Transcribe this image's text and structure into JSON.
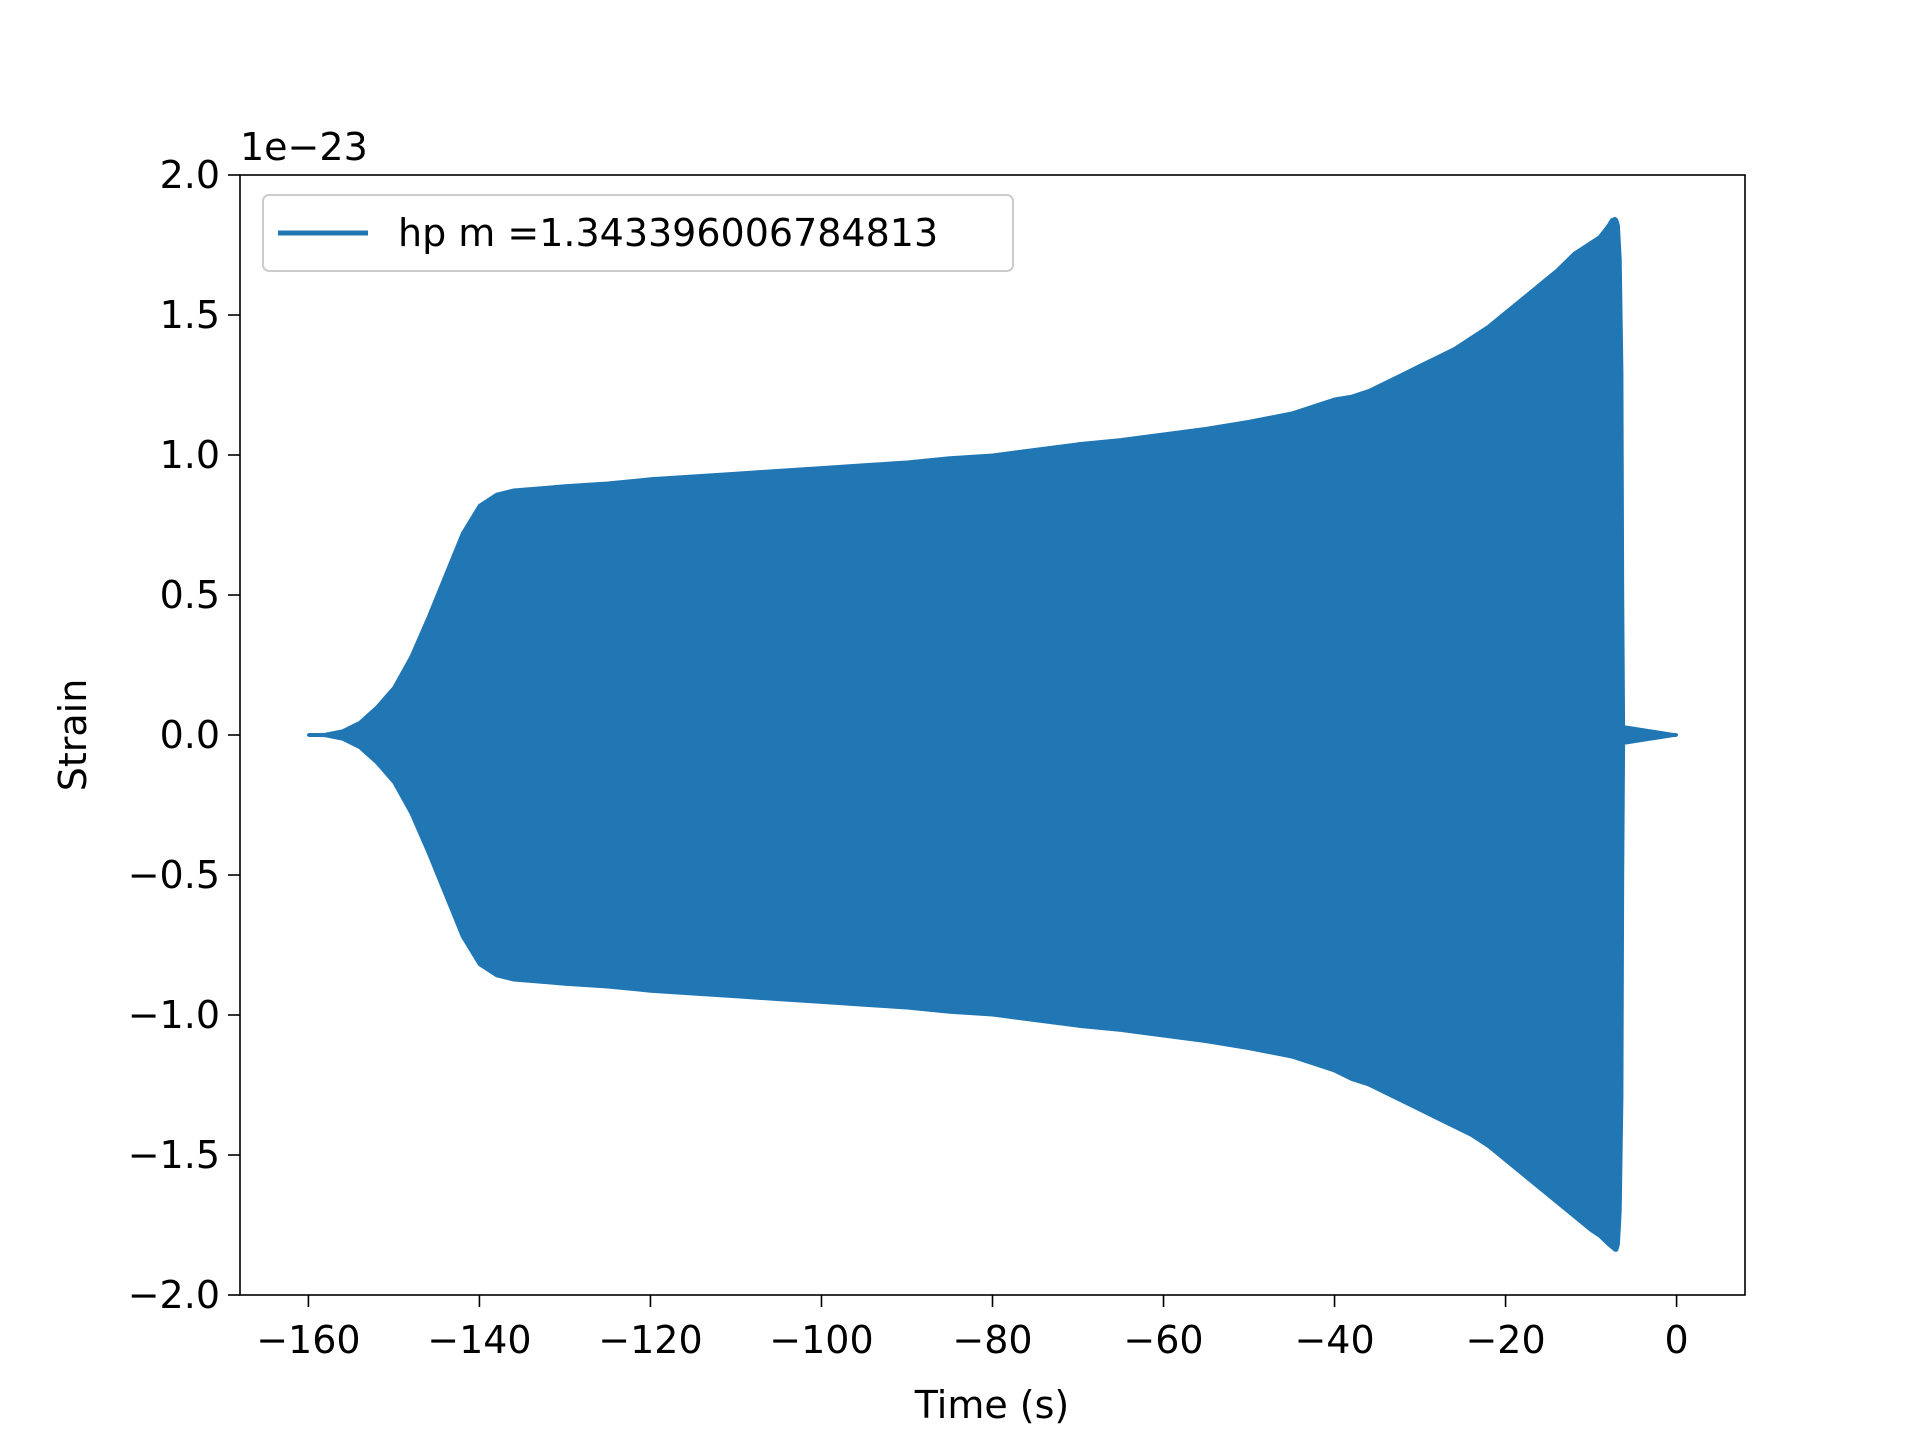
{
  "chart_data": {
    "type": "area",
    "title": "",
    "xlabel": "Time (s)",
    "ylabel": "Strain",
    "y_offset_label": "1e−23",
    "xlim": [
      -168,
      8
    ],
    "ylim": [
      -2.0,
      2.0
    ],
    "x_ticks": [
      -160,
      -140,
      -120,
      -100,
      -80,
      -60,
      -40,
      -20,
      0
    ],
    "x_tick_labels": [
      "−160",
      "−140",
      "−120",
      "−100",
      "−80",
      "−60",
      "−40",
      "−20",
      "0"
    ],
    "y_ticks": [
      2.0,
      1.5,
      1.0,
      0.5,
      0.0,
      -0.5,
      -1.0,
      -1.5,
      -2.0
    ],
    "y_tick_labels": [
      "2.0",
      "1.5",
      "1.0",
      "0.5",
      "0.0",
      "−0.5",
      "−1.0",
      "−1.5",
      "−2.0"
    ],
    "grid": false,
    "legend": {
      "position": "top-left",
      "entries": [
        "hp m =1.343396006784813"
      ]
    },
    "series": [
      {
        "name": "hp m =1.343396006784813",
        "color": "#2077b4",
        "upper_envelope": {
          "x": [
            -160,
            -158,
            -156,
            -154,
            -152,
            -150,
            -148,
            -146,
            -144,
            -142,
            -140,
            -138,
            -136,
            -134,
            -132,
            -130,
            -125,
            -120,
            -115,
            -110,
            -105,
            -100,
            -95,
            -90,
            -85,
            -80,
            -75,
            -70,
            -65,
            -60,
            -55,
            -50,
            -45,
            -40,
            -38,
            -36,
            -34,
            -32,
            -30,
            -28,
            -26,
            -24,
            -22,
            -20,
            -18,
            -16,
            -14,
            -12,
            -10,
            -9,
            -8,
            -7.6,
            -7.2,
            -7.0,
            -6.8,
            -6.6,
            -6.4,
            -6.3,
            -6.2,
            0
          ],
          "y": [
            0.0,
            0.003,
            0.015,
            0.045,
            0.1,
            0.17,
            0.28,
            0.42,
            0.57,
            0.72,
            0.82,
            0.86,
            0.875,
            0.88,
            0.885,
            0.89,
            0.9,
            0.915,
            0.925,
            0.935,
            0.945,
            0.955,
            0.965,
            0.975,
            0.99,
            1.0,
            1.02,
            1.04,
            1.055,
            1.075,
            1.095,
            1.12,
            1.15,
            1.2,
            1.21,
            1.23,
            1.26,
            1.29,
            1.32,
            1.35,
            1.38,
            1.42,
            1.46,
            1.51,
            1.56,
            1.61,
            1.66,
            1.72,
            1.76,
            1.78,
            1.82,
            1.84,
            1.845,
            1.84,
            1.82,
            1.7,
            1.3,
            0.5,
            0.03,
            0.0
          ]
        },
        "lower_envelope": {
          "x": [
            -160,
            -158,
            -156,
            -154,
            -152,
            -150,
            -148,
            -146,
            -144,
            -142,
            -140,
            -138,
            -136,
            -134,
            -132,
            -130,
            -125,
            -120,
            -115,
            -110,
            -105,
            -100,
            -95,
            -90,
            -85,
            -80,
            -75,
            -70,
            -65,
            -60,
            -55,
            -50,
            -45,
            -40,
            -38,
            -36,
            -34,
            -32,
            -30,
            -28,
            -26,
            -24,
            -22,
            -20,
            -18,
            -16,
            -14,
            -12,
            -10,
            -9,
            -8,
            -7.6,
            -7.2,
            -7.0,
            -6.8,
            -6.6,
            -6.4,
            -6.3,
            -6.2,
            0
          ],
          "y": [
            0.0,
            -0.003,
            -0.015,
            -0.045,
            -0.1,
            -0.17,
            -0.28,
            -0.42,
            -0.57,
            -0.72,
            -0.82,
            -0.86,
            -0.875,
            -0.88,
            -0.885,
            -0.89,
            -0.9,
            -0.915,
            -0.925,
            -0.935,
            -0.945,
            -0.955,
            -0.965,
            -0.975,
            -0.99,
            -1.0,
            -1.02,
            -1.04,
            -1.055,
            -1.075,
            -1.095,
            -1.12,
            -1.15,
            -1.2,
            -1.23,
            -1.25,
            -1.28,
            -1.31,
            -1.34,
            -1.37,
            -1.4,
            -1.43,
            -1.47,
            -1.52,
            -1.57,
            -1.62,
            -1.67,
            -1.72,
            -1.77,
            -1.79,
            -1.82,
            -1.83,
            -1.84,
            -1.84,
            -1.82,
            -1.7,
            -1.3,
            -0.5,
            -0.03,
            0.0
          ]
        }
      }
    ]
  }
}
